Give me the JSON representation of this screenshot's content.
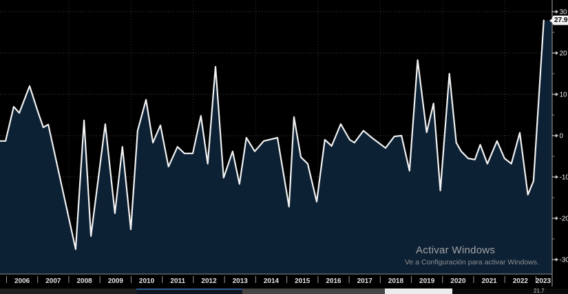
{
  "chart_data": {
    "type": "area",
    "title": "",
    "xlabel": "",
    "ylabel": "",
    "ylim": [
      -30,
      30
    ],
    "xlim": [
      2005.79,
      2023.52
    ],
    "yticks_major": [
      30,
      20,
      10,
      0,
      -10,
      -20,
      -30
    ],
    "yticks_minor": [
      25,
      15,
      5,
      -5,
      -15,
      -25
    ],
    "xtick_labels": [
      "2006",
      "2007",
      "2008",
      "2009",
      "2010",
      "2011",
      "2012",
      "2013",
      "2014",
      "2015",
      "2016",
      "2017",
      "2018",
      "2019",
      "2020",
      "2021",
      "2022",
      "2023"
    ],
    "grid_x_years": [
      2008,
      2010,
      2012,
      2014,
      2016,
      2018,
      2020,
      2022
    ],
    "grid_style": "dotted",
    "legend": "none",
    "last_value_label": "27.9",
    "line_color": "#f2f2f2",
    "fill_color": "#0e2338",
    "background_color": "#000000",
    "points": [
      [
        2005.79,
        -1.3
      ],
      [
        2005.97,
        -1.3
      ],
      [
        2006.23,
        7.0
      ],
      [
        2006.41,
        5.5
      ],
      [
        2006.74,
        12.0
      ],
      [
        2007.01,
        5.7
      ],
      [
        2007.18,
        2.0
      ],
      [
        2007.34,
        2.7
      ],
      [
        2008.22,
        -27.5
      ],
      [
        2008.49,
        3.7
      ],
      [
        2008.71,
        -24.3
      ],
      [
        2009.17,
        2.8
      ],
      [
        2009.48,
        -18.8
      ],
      [
        2009.72,
        -2.7
      ],
      [
        2009.99,
        -22.7
      ],
      [
        2010.21,
        1.2
      ],
      [
        2010.48,
        8.7
      ],
      [
        2010.7,
        -1.7
      ],
      [
        2010.94,
        2.5
      ],
      [
        2011.2,
        -7.5
      ],
      [
        2011.49,
        -2.7
      ],
      [
        2011.71,
        -4.3
      ],
      [
        2011.98,
        -4.3
      ],
      [
        2012.24,
        4.8
      ],
      [
        2012.46,
        -6.8
      ],
      [
        2012.71,
        16.7
      ],
      [
        2012.97,
        -10.2
      ],
      [
        2013.26,
        -3.8
      ],
      [
        2013.48,
        -11.7
      ],
      [
        2013.7,
        -0.5
      ],
      [
        2013.97,
        -3.8
      ],
      [
        2014.26,
        -1.3
      ],
      [
        2014.7,
        -0.5
      ],
      [
        2015.07,
        -17.2
      ],
      [
        2015.23,
        4.5
      ],
      [
        2015.45,
        -5.2
      ],
      [
        2015.67,
        -6.8
      ],
      [
        2015.96,
        -16.0
      ],
      [
        2016.22,
        -1.0
      ],
      [
        2016.44,
        -2.5
      ],
      [
        2016.73,
        2.8
      ],
      [
        2017.02,
        -1.0
      ],
      [
        2017.17,
        -1.7
      ],
      [
        2017.46,
        1.2
      ],
      [
        2017.73,
        -0.5
      ],
      [
        2018.17,
        -3.0
      ],
      [
        2018.45,
        -0.2
      ],
      [
        2018.68,
        0.0
      ],
      [
        2018.94,
        -8.5
      ],
      [
        2019.2,
        18.3
      ],
      [
        2019.49,
        0.8
      ],
      [
        2019.71,
        7.8
      ],
      [
        2019.93,
        -13.3
      ],
      [
        2020.22,
        15.0
      ],
      [
        2020.44,
        -1.7
      ],
      [
        2020.6,
        -3.8
      ],
      [
        2020.82,
        -5.5
      ],
      [
        2021.04,
        -5.8
      ],
      [
        2021.21,
        -2.2
      ],
      [
        2021.44,
        -6.8
      ],
      [
        2021.75,
        -1.3
      ],
      [
        2021.99,
        -5.5
      ],
      [
        2022.21,
        -6.8
      ],
      [
        2022.48,
        0.7
      ],
      [
        2022.74,
        -14.3
      ],
      [
        2022.92,
        -11.0
      ],
      [
        2023.25,
        27.9
      ]
    ]
  },
  "watermark": {
    "line1": "Activar Windows",
    "line2": "Ve a Configuración para activar Windows."
  },
  "bottom_strip": {
    "partial_label": "21.7"
  }
}
